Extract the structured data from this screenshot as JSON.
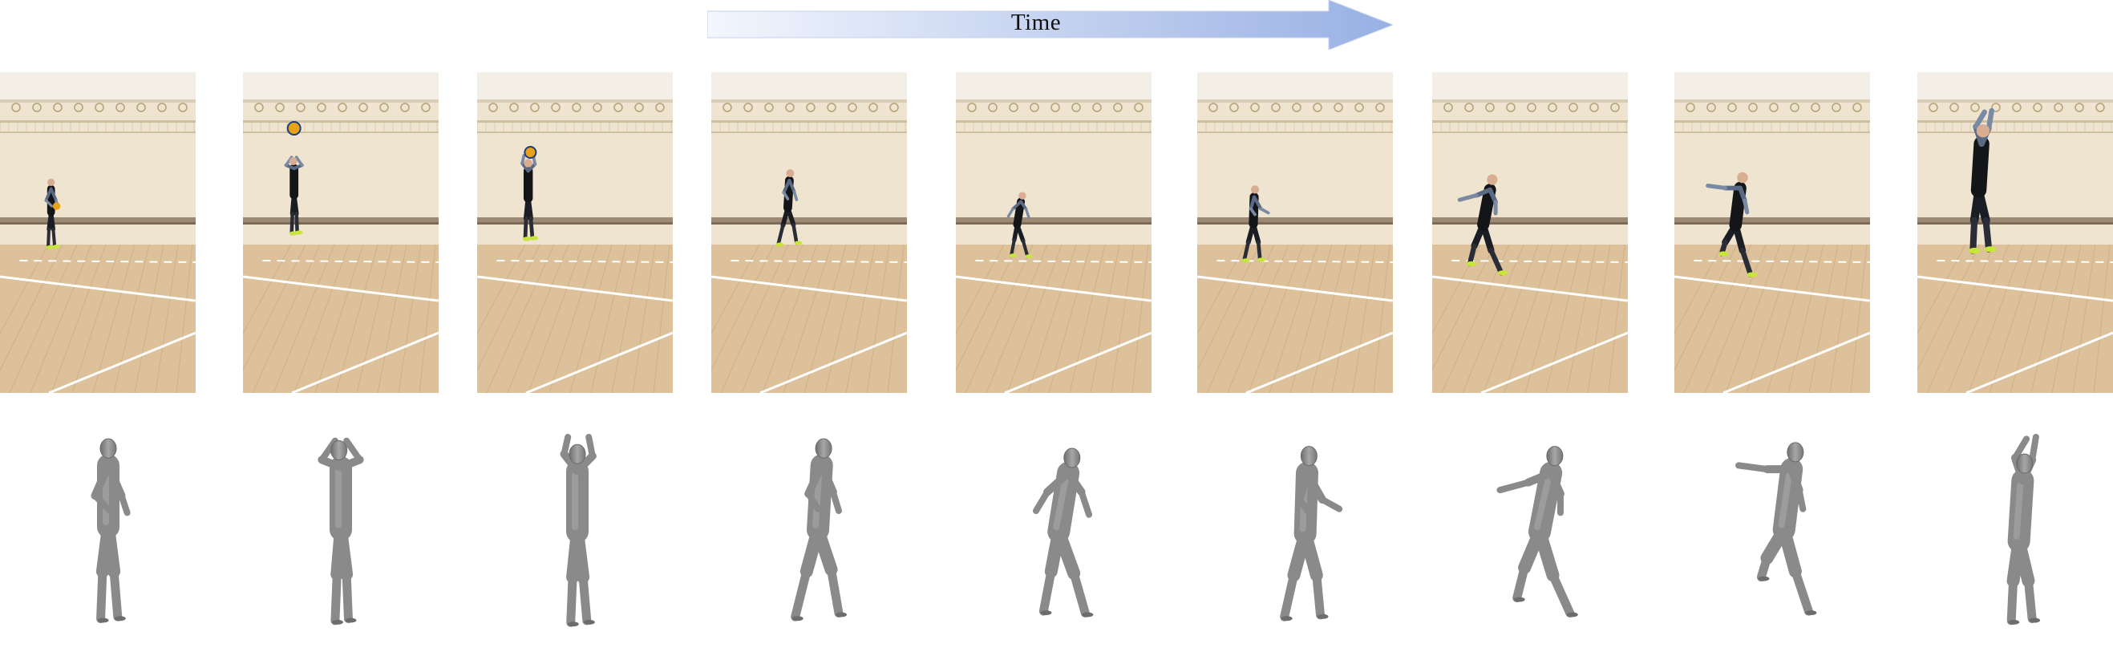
{
  "timeline": {
    "label": "Time",
    "arrow_gradient": [
      "#f1f5fc",
      "#9fb5e6"
    ]
  },
  "frames": [
    {
      "index": 1,
      "pose": "hold-ball"
    },
    {
      "index": 2,
      "pose": "toss-ball"
    },
    {
      "index": 3,
      "pose": "arms-up"
    },
    {
      "index": 4,
      "pose": "approach-step"
    },
    {
      "index": 5,
      "pose": "lean-forward"
    },
    {
      "index": 6,
      "pose": "crouch-run"
    },
    {
      "index": 7,
      "pose": "leap-arm-back"
    },
    {
      "index": 8,
      "pose": "jump-arm-back"
    },
    {
      "index": 9,
      "pose": "spike-arms-up"
    }
  ],
  "colors": {
    "wall": "#efe4cf",
    "floor": "#dcc19a",
    "mesh": "#8a8a8a",
    "shoe": "#c8e63a"
  }
}
